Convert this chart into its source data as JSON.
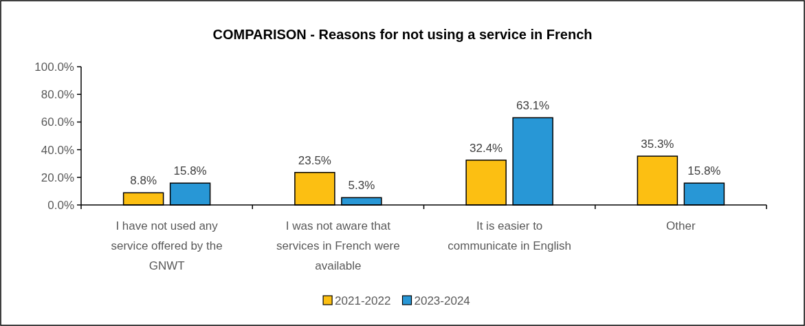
{
  "chart_data": {
    "type": "bar",
    "title": "COMPARISON - Reasons for not using a service in French",
    "categories": [
      "I have not used any service offered by the GNWT",
      "I was not aware that services in French were available",
      "It is easier to communicate in English",
      "Other"
    ],
    "series": [
      {
        "name": "2021-2022",
        "color": "#fcbf12",
        "values": [
          8.8,
          23.5,
          32.4,
          35.3
        ],
        "value_labels": [
          "8.8%",
          "23.5%",
          "32.4%",
          "35.3%"
        ]
      },
      {
        "name": "2023-2024",
        "color": "#2897d6",
        "values": [
          15.8,
          5.3,
          63.1,
          15.8
        ],
        "value_labels": [
          "15.8%",
          "5.3%",
          "63.1%",
          "15.8%"
        ]
      }
    ],
    "ylim": [
      0,
      100
    ],
    "yticks": [
      {
        "value": 0,
        "label": "0.0%"
      },
      {
        "value": 20,
        "label": "20.0%"
      },
      {
        "value": 40,
        "label": "40.0%"
      },
      {
        "value": 60,
        "label": "60.0%"
      },
      {
        "value": 80,
        "label": "80.0%"
      },
      {
        "value": 100,
        "label": "100.0%"
      }
    ],
    "grid": false,
    "legend": "bottom"
  }
}
